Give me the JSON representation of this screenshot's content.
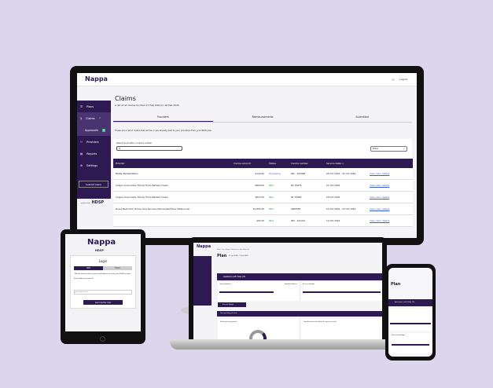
{
  "brand": {
    "logo": "Nappa",
    "powered_by": "powered by",
    "partner": "HDSP"
  },
  "desktop": {
    "header": {
      "logout": "Logout"
    },
    "sidebar": {
      "items": [
        {
          "label": "Plans"
        },
        {
          "label": "Claims"
        },
        {
          "label": "Approvals",
          "badge": "1"
        },
        {
          "label": "Providers"
        },
        {
          "label": "Reports"
        },
        {
          "label": "Settings"
        }
      ],
      "submit": "Submit Claim"
    },
    "title": "Claims",
    "subtitle": "A list of all claims for Plan 17 Feb 2022 to 16 Feb 2025",
    "tabs": [
      "Providers",
      "Reimbursements",
      "Submitted"
    ],
    "description": "These are a list of claims that will be or are already paid to your providers from your NDIS plan.",
    "search_label": "Search by provider or invoice number",
    "filter": "Filter",
    "columns": [
      "Provider",
      "Invoice amount",
      "Status",
      "Invoice number",
      "Service dates ↓",
      ""
    ],
    "rows": [
      {
        "provider": "Better Rehabilitation",
        "amount": "$118.40",
        "status": "Processing",
        "invoice": "INV - 203068",
        "dates": "29 Oct 2024 - 31 Oct 2024",
        "link": "View claim details"
      },
      {
        "provider": "Colgan Corporation Family Trust (Radiant Clean)",
        "amount": "$850.00",
        "status": "Paid",
        "invoice": "RC 35875",
        "dates": "21 Oct 2024",
        "link": "View claim details"
      },
      {
        "provider": "Colgan Corporation Family Trust (Radiant Clean)",
        "amount": "$813.00",
        "status": "Paid",
        "invoice": "RC 35864",
        "dates": "18 Oct 2024",
        "link": "View claim details"
      },
      {
        "provider": "Nurse Next Door Home Care Services (Nurse Next Door Melbourne)",
        "amount": "$1,853.45",
        "status": "Paid",
        "invoice": "0000587",
        "dates": "10 Oct 2024 - 23 Oct 2024",
        "link": "View claim details"
      },
      {
        "provider": "",
        "amount": "$97.00",
        "status": "Paid",
        "invoice": "INV - 231212",
        "dates": "10 Oct 2024",
        "link": "View claim details"
      }
    ],
    "colors": {
      "primary": "#2e1a52",
      "paid": "#2f8a3b",
      "processing": "#6a3fb0"
    }
  },
  "tablet": {
    "title": "Login",
    "toggle": [
      "SMS",
      "Email"
    ],
    "text": "We can send a code to your email address to verify your NDSP account.",
    "field_label": "Email address (required)",
    "placeholder": "you@domain.com",
    "button": "Send me the code"
  },
  "laptop": {
    "breadcrumb": "Plan / Core Budget / Assistance with Daily Life",
    "title": "Plan",
    "dates": "17 Jul 2024 - 17 Jul 2025",
    "card1": "Assistance with Daily Life",
    "opening": "Opening balance",
    "available": "Available balance",
    "card2": "Reserved budget",
    "button": "Reserve Budget",
    "section": "Your spending overview",
    "chart_title": "Funds spent by provider",
    "right_title": "Your Assistance with Daily Life spend overview"
  },
  "phone": {
    "title": "Plan",
    "card": "Assistance with Daily Life",
    "reserved": "Reserved budget"
  }
}
